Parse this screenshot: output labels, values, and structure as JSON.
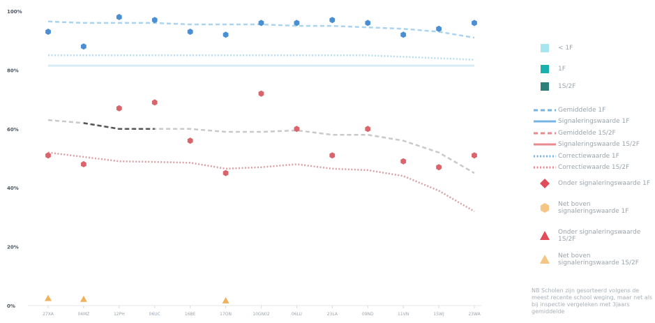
{
  "chart_data": {
    "type": "scatter",
    "categories": [
      "27XA",
      "04MZ",
      "12PH",
      "06UC",
      "16BE",
      "17ON",
      "10GN02",
      "06LU",
      "23LA",
      "09ND",
      "11VN",
      "15WJ",
      "23WA"
    ],
    "ylim": [
      0,
      100
    ],
    "yticks": [
      0,
      20,
      40,
      60,
      80,
      100
    ],
    "ytick_labels": [
      "0%",
      "20%",
      "40%",
      "60%",
      "80%",
      "100%"
    ],
    "series": [
      {
        "name": "1F",
        "kind": "points",
        "marker": "hexagon",
        "color": "#4a8fd4",
        "values": [
          93,
          88,
          98,
          97,
          93,
          92,
          96,
          96,
          97,
          96,
          92,
          94,
          96
        ]
      },
      {
        "name": "1S/2F",
        "kind": "points",
        "marker": "hexagon",
        "color": "#d9646b",
        "values": [
          51,
          48,
          67,
          69,
          56,
          45,
          72,
          60,
          51,
          60,
          49,
          47,
          51
        ]
      },
      {
        "name": "Net boven signaleringswaarde 1S/2F",
        "kind": "points",
        "marker": "triangle",
        "color": "#f0b15c",
        "values": [
          2.5,
          2.2,
          null,
          null,
          null,
          1.7,
          null,
          null,
          null,
          null,
          null,
          null,
          null
        ]
      },
      {
        "name": "Gemiddelde 1F",
        "kind": "line",
        "style": "dashed",
        "color": "#a8d4f0",
        "values": [
          96.5,
          96,
          96,
          96,
          95.5,
          95.5,
          95.5,
          95,
          95,
          94.5,
          94,
          93,
          91
        ]
      },
      {
        "name": "Signaleringswaarde 1F",
        "kind": "line",
        "style": "dotted",
        "color": "#b8ddf2",
        "values": [
          85,
          85,
          85,
          85,
          85,
          85,
          85,
          85,
          85,
          85,
          84.5,
          84,
          83.5
        ]
      },
      {
        "name": "Correctiewaarde 1F",
        "kind": "line",
        "style": "solid",
        "color": "#d7eef8",
        "values": [
          81.5,
          81.5,
          81.5,
          81.5,
          81.5,
          81.5,
          81.5,
          81.5,
          81.5,
          81.5,
          81.5,
          81.5,
          81.5
        ]
      },
      {
        "name": "Gemiddelde 1S/2F",
        "kind": "line",
        "style": "dashed",
        "color": "#c9c9c9",
        "values": [
          63,
          62,
          60,
          60,
          60,
          59,
          59,
          59.5,
          58,
          58,
          56,
          52,
          45
        ]
      },
      {
        "name": "Gemiddelde 1S/2F (dark)",
        "kind": "line",
        "style": "dashed",
        "color": "#555555",
        "values": [
          null,
          62,
          60,
          60,
          null,
          null,
          null,
          null,
          null,
          null,
          null,
          null,
          null
        ]
      },
      {
        "name": "Signaleringswaarde 1S/2F",
        "kind": "line",
        "style": "dotted",
        "color": "#d9a0a4",
        "values": [
          52,
          50.5,
          49,
          48.8,
          48.5,
          46.5,
          47,
          48,
          46.5,
          46,
          44,
          39,
          32
        ]
      }
    ]
  },
  "legend": {
    "items": [
      {
        "type": "square",
        "color": "#a8e6ef",
        "label": "< 1F"
      },
      {
        "type": "square",
        "color": "#1ab0ae",
        "label": "1F"
      },
      {
        "type": "square",
        "color": "#2e7f77",
        "label": "1S/2F"
      },
      {
        "type": "line",
        "color": "#76b4e4",
        "style": "dashed",
        "label": "Gemiddelde 1F"
      },
      {
        "type": "line",
        "color": "#76b4e4",
        "style": "solid",
        "label": "Signaleringswaarde 1F"
      },
      {
        "type": "line",
        "color": "#e88a8f",
        "style": "dashed",
        "label": "Gemiddelde 1S/2F"
      },
      {
        "type": "line",
        "color": "#e88a8f",
        "style": "solid",
        "label": "Signaleringswaarde 1S/2F"
      },
      {
        "type": "line",
        "color": "#76b4e4",
        "style": "dotted",
        "label": "Correctiewaarde 1F"
      },
      {
        "type": "line",
        "color": "#e88a8f",
        "style": "dotted",
        "label": "Correctiewaarde 1S/2F"
      },
      {
        "type": "diamond",
        "color": "#e04c5a",
        "label": "Onder signaleringswaarde 1F"
      },
      {
        "type": "hexagon",
        "color": "#f5c583",
        "label": "Net boven signaleringswaarde 1F"
      },
      {
        "type": "triangle",
        "color": "#e04c5a",
        "label": "Onder signaleringswaarde 1S/2F"
      },
      {
        "type": "triangle",
        "color": "#f5c583",
        "label": "Net boven signaleringswaarde 1S/2F"
      }
    ]
  },
  "footnote": "NB Scholen zijn gesorteerd volgens de meest recente school weging, maar net als bij inspectie vergeleken met 3jaars gemiddelde"
}
